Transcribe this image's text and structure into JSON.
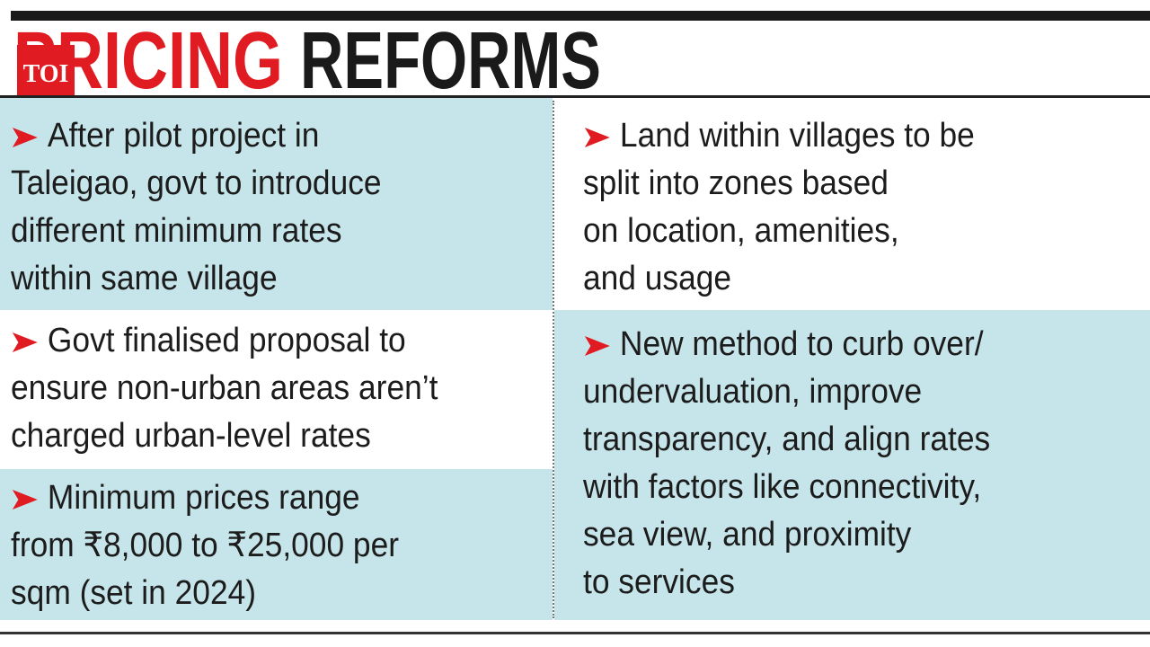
{
  "header": {
    "title_red": "PRICING",
    "title_black": "REFORMS",
    "logo": "TOI"
  },
  "left_column": [
    {
      "lines": [
        "After pilot project in",
        "Taleigao, govt to introduce",
        "different minimum rates",
        "within same village"
      ]
    },
    {
      "lines": [
        "Govt finalised proposal to",
        "ensure non-urban areas aren’t",
        "charged urban-level rates"
      ]
    },
    {
      "lines": [
        "Minimum prices range",
        "from ₹8,000 to ₹25,000 per",
        "sqm (set in 2024)"
      ]
    }
  ],
  "right_column": [
    {
      "lines": [
        "Land within villages to be",
        "split into zones based",
        "on location, amenities,",
        "and usage"
      ]
    },
    {
      "lines": [
        "New method to curb over/",
        "undervaluation, improve",
        "transparency, and align rates",
        "with factors like connectivity,",
        "sea view, and proximity",
        "to services"
      ]
    }
  ]
}
